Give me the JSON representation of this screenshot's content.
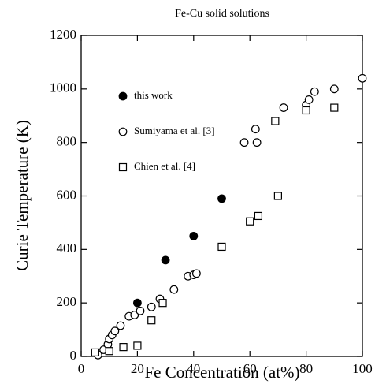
{
  "chart_data": {
    "type": "scatter",
    "title": "Fe-Cu solid solutions",
    "x_label": "Fe Concentration (at%)",
    "y_label": "Curie Temperature (K)",
    "xlim": [
      0,
      100
    ],
    "ylim": [
      0,
      1200
    ],
    "xticks": [
      0,
      20,
      40,
      60,
      80,
      100
    ],
    "yticks": [
      0,
      200,
      400,
      600,
      800,
      1000,
      1200
    ],
    "legend": "upper left",
    "series": [
      {
        "name": "this work",
        "marker": "filled-circle",
        "color": "#000000",
        "x": [
          20,
          30,
          40,
          50
        ],
        "values": [
          200,
          360,
          450,
          590
        ]
      },
      {
        "name": "Sumiyama et al. [3]",
        "marker": "circle",
        "color": "#000000",
        "x": [
          6,
          8,
          9.5,
          10,
          11,
          12,
          14,
          17,
          19,
          21,
          25,
          28,
          33,
          38,
          40,
          41,
          58,
          62,
          62.5,
          72,
          80,
          81,
          83,
          90,
          100
        ],
        "values": [
          5,
          25,
          45,
          65,
          80,
          95,
          115,
          150,
          155,
          170,
          185,
          215,
          250,
          300,
          305,
          310,
          800,
          850,
          800,
          930,
          940,
          960,
          990,
          1000,
          1040
        ]
      },
      {
        "name": "Chien et al. [4]",
        "marker": "square",
        "color": "#000000",
        "x": [
          5,
          10,
          15,
          20,
          25,
          29,
          50,
          60,
          63,
          70,
          69,
          80,
          90
        ],
        "values": [
          15,
          20,
          35,
          40,
          135,
          200,
          410,
          505,
          525,
          600,
          880,
          920,
          930
        ]
      }
    ]
  }
}
